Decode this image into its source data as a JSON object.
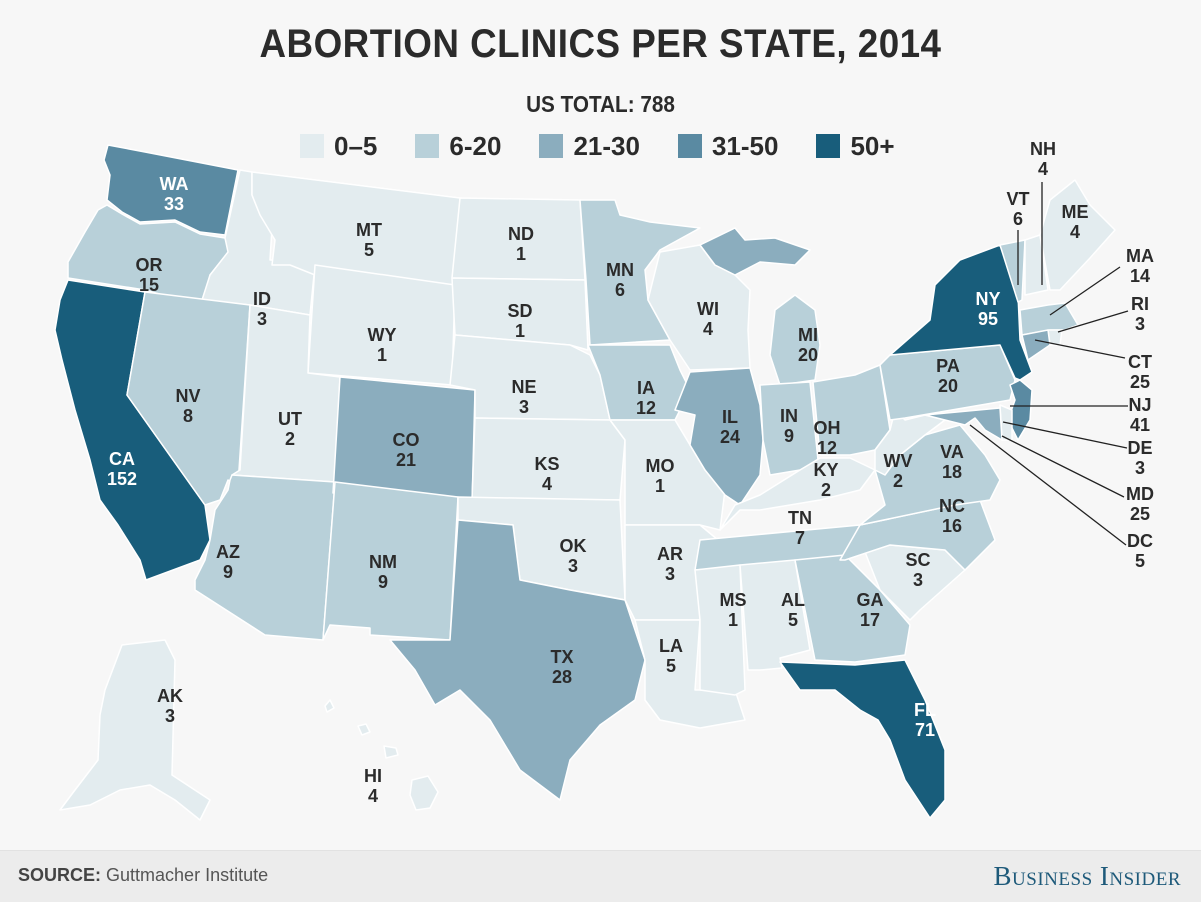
{
  "title": "ABORTION CLINICS PER STATE, 2014",
  "subtitle": "US TOTAL: 788",
  "legend": [
    {
      "label": "0–5",
      "color": "#e3ecef"
    },
    {
      "label": "6-20",
      "color": "#b8d0d9"
    },
    {
      "label": "21-30",
      "color": "#8badbe"
    },
    {
      "label": "31-50",
      "color": "#5a8aa2"
    },
    {
      "label": "50+",
      "color": "#185d7b"
    }
  ],
  "footer": {
    "source_label": "SOURCE:",
    "source_text": "Guttmacher Institute",
    "brand": "Business Insider"
  },
  "chart_data": {
    "type": "choropleth",
    "title": "ABORTION CLINICS PER STATE, 2014",
    "subtitle": "US TOTAL: 788",
    "total": 788,
    "bins": [
      {
        "label": "0–5",
        "min": 0,
        "max": 5
      },
      {
        "label": "6-20",
        "min": 6,
        "max": 20
      },
      {
        "label": "21-30",
        "min": 21,
        "max": 30
      },
      {
        "label": "31-50",
        "min": 31,
        "max": 50
      },
      {
        "label": "50+",
        "min": 51,
        "max": null
      }
    ],
    "legend_position": "top-center",
    "states": [
      {
        "code": "WA",
        "value": 33
      },
      {
        "code": "OR",
        "value": 15
      },
      {
        "code": "CA",
        "value": 152
      },
      {
        "code": "ID",
        "value": 3
      },
      {
        "code": "NV",
        "value": 8
      },
      {
        "code": "MT",
        "value": 5
      },
      {
        "code": "WY",
        "value": 1
      },
      {
        "code": "UT",
        "value": 2
      },
      {
        "code": "AZ",
        "value": 9
      },
      {
        "code": "CO",
        "value": 21
      },
      {
        "code": "NM",
        "value": 9
      },
      {
        "code": "ND",
        "value": 1
      },
      {
        "code": "SD",
        "value": 1
      },
      {
        "code": "NE",
        "value": 3
      },
      {
        "code": "KS",
        "value": 4
      },
      {
        "code": "OK",
        "value": 3
      },
      {
        "code": "TX",
        "value": 28
      },
      {
        "code": "MN",
        "value": 6
      },
      {
        "code": "IA",
        "value": 12
      },
      {
        "code": "MO",
        "value": 1
      },
      {
        "code": "AR",
        "value": 3
      },
      {
        "code": "LA",
        "value": 5
      },
      {
        "code": "WI",
        "value": 4
      },
      {
        "code": "IL",
        "value": 24
      },
      {
        "code": "MI",
        "value": 20
      },
      {
        "code": "IN",
        "value": 9
      },
      {
        "code": "OH",
        "value": 12
      },
      {
        "code": "KY",
        "value": 2
      },
      {
        "code": "TN",
        "value": 7
      },
      {
        "code": "MS",
        "value": 1
      },
      {
        "code": "AL",
        "value": 5
      },
      {
        "code": "GA",
        "value": 17
      },
      {
        "code": "FL",
        "value": 71
      },
      {
        "code": "SC",
        "value": 3
      },
      {
        "code": "NC",
        "value": 16
      },
      {
        "code": "VA",
        "value": 18
      },
      {
        "code": "WV",
        "value": 2
      },
      {
        "code": "PA",
        "value": 20
      },
      {
        "code": "NY",
        "value": 95
      },
      {
        "code": "VT",
        "value": 6
      },
      {
        "code": "NH",
        "value": 4
      },
      {
        "code": "ME",
        "value": 4
      },
      {
        "code": "MA",
        "value": 14
      },
      {
        "code": "RI",
        "value": 3
      },
      {
        "code": "CT",
        "value": 25
      },
      {
        "code": "NJ",
        "value": 41
      },
      {
        "code": "DE",
        "value": 3
      },
      {
        "code": "MD",
        "value": 25
      },
      {
        "code": "DC",
        "value": 5
      },
      {
        "code": "AK",
        "value": 3
      },
      {
        "code": "HI",
        "value": 4
      }
    ]
  }
}
